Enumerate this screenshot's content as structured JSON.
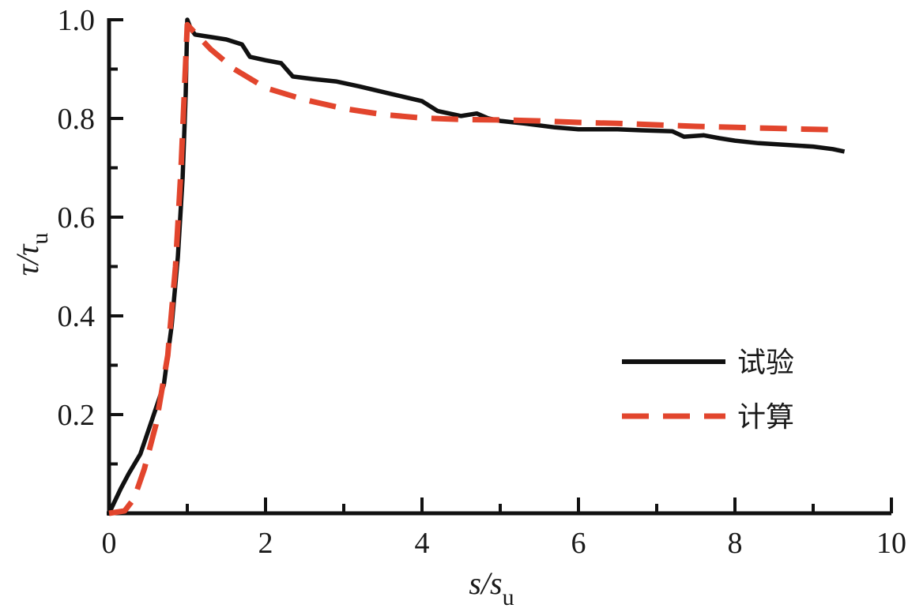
{
  "chart_data": {
    "type": "line",
    "xlabel": {
      "main": "s/s",
      "sub": "u"
    },
    "ylabel": {
      "main": "τ/τ",
      "sub": "u"
    },
    "xlim": [
      0,
      10
    ],
    "ylim": [
      0,
      1.0
    ],
    "x_ticks": [
      0,
      2,
      4,
      6,
      8,
      10
    ],
    "x_tick_labels": [
      "0",
      "2",
      "4",
      "6",
      "8",
      "10"
    ],
    "y_ticks": [
      0.2,
      0.4,
      0.6,
      0.8,
      1.0
    ],
    "y_tick_labels": [
      "0.2",
      "0.4",
      "0.6",
      "0.8",
      "1.0"
    ],
    "grid": false,
    "legend_position": "right",
    "series": [
      {
        "name": "试验",
        "color": "#111111",
        "style": "solid",
        "points": [
          [
            0,
            0
          ],
          [
            0.15,
            0.05
          ],
          [
            0.25,
            0.08
          ],
          [
            0.4,
            0.12
          ],
          [
            0.55,
            0.19
          ],
          [
            0.7,
            0.26
          ],
          [
            0.8,
            0.38
          ],
          [
            0.88,
            0.52
          ],
          [
            0.94,
            0.68
          ],
          [
            0.98,
            0.85
          ],
          [
            1.0,
            1.0
          ],
          [
            1.05,
            0.98
          ],
          [
            1.1,
            0.97
          ],
          [
            1.3,
            0.965
          ],
          [
            1.5,
            0.96
          ],
          [
            1.7,
            0.95
          ],
          [
            1.8,
            0.925
          ],
          [
            2.0,
            0.918
          ],
          [
            2.2,
            0.912
          ],
          [
            2.35,
            0.885
          ],
          [
            2.6,
            0.88
          ],
          [
            2.9,
            0.875
          ],
          [
            3.2,
            0.865
          ],
          [
            3.6,
            0.85
          ],
          [
            4.0,
            0.835
          ],
          [
            4.2,
            0.815
          ],
          [
            4.5,
            0.805
          ],
          [
            4.7,
            0.81
          ],
          [
            4.85,
            0.8
          ],
          [
            5.0,
            0.795
          ],
          [
            5.3,
            0.79
          ],
          [
            5.7,
            0.782
          ],
          [
            6.0,
            0.778
          ],
          [
            6.5,
            0.778
          ],
          [
            6.8,
            0.776
          ],
          [
            7.2,
            0.774
          ],
          [
            7.35,
            0.763
          ],
          [
            7.6,
            0.766
          ],
          [
            7.8,
            0.76
          ],
          [
            8.0,
            0.755
          ],
          [
            8.3,
            0.75
          ],
          [
            8.7,
            0.746
          ],
          [
            9.0,
            0.743
          ],
          [
            9.25,
            0.738
          ],
          [
            9.4,
            0.733
          ]
        ]
      },
      {
        "name": "计算",
        "color": "#e2452d",
        "style": "dashed",
        "points": [
          [
            0,
            0
          ],
          [
            0.2,
            0.005
          ],
          [
            0.32,
            0.03
          ],
          [
            0.45,
            0.09
          ],
          [
            0.6,
            0.18
          ],
          [
            0.75,
            0.32
          ],
          [
            0.85,
            0.5
          ],
          [
            0.92,
            0.7
          ],
          [
            0.97,
            0.88
          ],
          [
            1.0,
            0.99
          ],
          [
            1.15,
            0.965
          ],
          [
            1.3,
            0.94
          ],
          [
            1.6,
            0.9
          ],
          [
            2.0,
            0.862
          ],
          [
            2.5,
            0.838
          ],
          [
            3.0,
            0.82
          ],
          [
            3.5,
            0.808
          ],
          [
            4.0,
            0.801
          ],
          [
            4.5,
            0.798
          ],
          [
            5.0,
            0.797
          ],
          [
            5.5,
            0.795
          ],
          [
            6.0,
            0.792
          ],
          [
            6.5,
            0.79
          ],
          [
            7.0,
            0.787
          ],
          [
            7.5,
            0.784
          ],
          [
            8.0,
            0.782
          ],
          [
            8.5,
            0.78
          ],
          [
            9.0,
            0.778
          ],
          [
            9.3,
            0.777
          ]
        ]
      }
    ]
  }
}
